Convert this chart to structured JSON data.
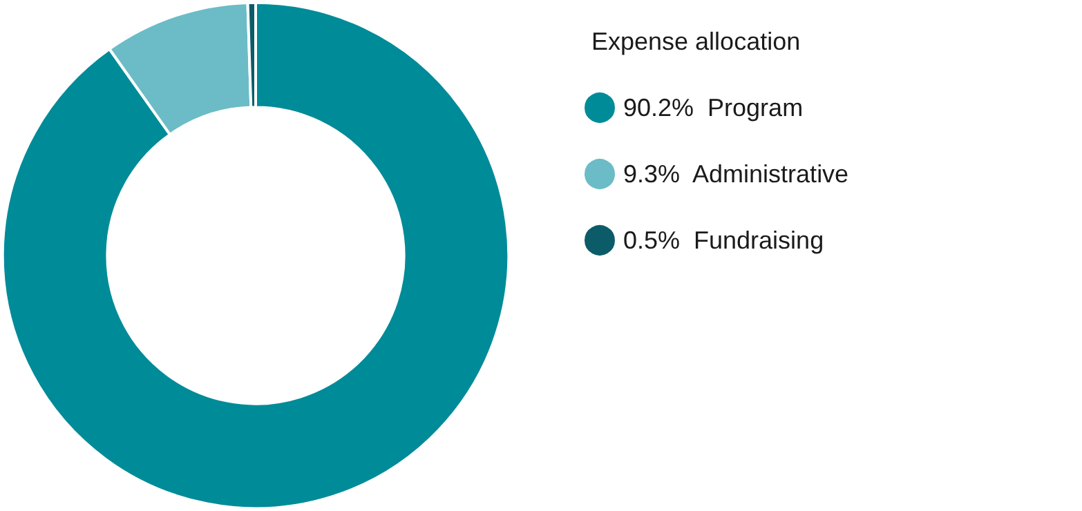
{
  "chart_data": {
    "type": "donut",
    "legend_title": "Expense allocation",
    "categories": [
      "Program",
      "Administrative",
      "Fundraising"
    ],
    "values": [
      90.2,
      9.3,
      0.5
    ],
    "value_labels": [
      "90.2%",
      "9.3%",
      "0.5%"
    ],
    "colors": [
      "#008b99",
      "#6bbcc6",
      "#0b5c68"
    ],
    "legend": "right"
  }
}
